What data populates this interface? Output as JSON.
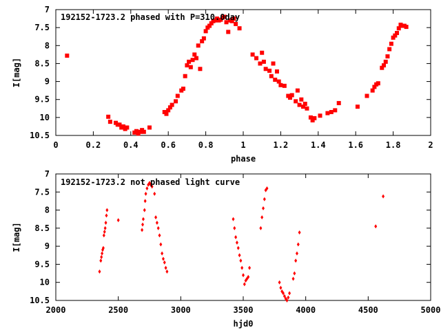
{
  "chart_data": [
    {
      "type": "scatter",
      "title": "192152-1723.2 phased with P=310.0day",
      "xlabel": "phase",
      "ylabel": "I[mag]",
      "xlim": [
        0,
        2
      ],
      "ylim": [
        7,
        10.5
      ],
      "y_inverted": true,
      "grid": false,
      "legend": "none",
      "marker": "square",
      "color": "#ff0000",
      "x_ticks": [
        "0",
        "0.2",
        "0.4",
        "0.6",
        "0.8",
        "1",
        "1.2",
        "1.4",
        "1.6",
        "1.8",
        "2"
      ],
      "y_ticks": [
        "7",
        "7.5",
        "8",
        "8.5",
        "9",
        "9.5",
        "10",
        "10.5"
      ],
      "points": [
        [
          0.06,
          8.28
        ],
        [
          0.28,
          9.98
        ],
        [
          0.29,
          10.12
        ],
        [
          0.32,
          10.15
        ],
        [
          0.33,
          10.2
        ],
        [
          0.34,
          10.2
        ],
        [
          0.35,
          10.28
        ],
        [
          0.36,
          10.25
        ],
        [
          0.37,
          10.32
        ],
        [
          0.38,
          10.28
        ],
        [
          0.42,
          10.42
        ],
        [
          0.43,
          10.38
        ],
        [
          0.44,
          10.45
        ],
        [
          0.45,
          10.4
        ],
        [
          0.46,
          10.35
        ],
        [
          0.47,
          10.4
        ],
        [
          0.5,
          10.28
        ],
        [
          0.58,
          9.85
        ],
        [
          0.59,
          9.9
        ],
        [
          0.6,
          9.8
        ],
        [
          0.61,
          9.72
        ],
        [
          0.62,
          9.65
        ],
        [
          0.64,
          9.55
        ],
        [
          0.65,
          9.4
        ],
        [
          0.67,
          9.25
        ],
        [
          0.68,
          9.2
        ],
        [
          0.69,
          8.85
        ],
        [
          0.7,
          8.55
        ],
        [
          0.71,
          8.45
        ],
        [
          0.72,
          8.6
        ],
        [
          0.73,
          8.4
        ],
        [
          0.74,
          8.25
        ],
        [
          0.75,
          8.35
        ],
        [
          0.76,
          8.0
        ],
        [
          0.77,
          8.65
        ],
        [
          0.78,
          7.88
        ],
        [
          0.79,
          7.8
        ],
        [
          0.8,
          7.6
        ],
        [
          0.81,
          7.5
        ],
        [
          0.82,
          7.45
        ],
        [
          0.83,
          7.38
        ],
        [
          0.84,
          7.32
        ],
        [
          0.85,
          7.3
        ],
        [
          0.86,
          7.25
        ],
        [
          0.87,
          7.3
        ],
        [
          0.88,
          7.28
        ],
        [
          0.89,
          7.22
        ],
        [
          0.9,
          7.2
        ],
        [
          0.91,
          7.35
        ],
        [
          0.92,
          7.62
        ],
        [
          0.93,
          7.3
        ],
        [
          0.94,
          7.32
        ],
        [
          0.95,
          7.25
        ],
        [
          0.96,
          7.4
        ],
        [
          0.98,
          7.52
        ],
        [
          1.05,
          8.25
        ],
        [
          1.07,
          8.35
        ],
        [
          1.09,
          8.5
        ],
        [
          1.1,
          8.2
        ],
        [
          1.11,
          8.45
        ],
        [
          1.12,
          8.65
        ],
        [
          1.14,
          8.7
        ],
        [
          1.15,
          8.85
        ],
        [
          1.16,
          8.5
        ],
        [
          1.17,
          8.95
        ],
        [
          1.18,
          8.72
        ],
        [
          1.19,
          9.0
        ],
        [
          1.2,
          9.1
        ],
        [
          1.22,
          9.12
        ],
        [
          1.24,
          9.4
        ],
        [
          1.25,
          9.45
        ],
        [
          1.26,
          9.38
        ],
        [
          1.28,
          9.55
        ],
        [
          1.29,
          9.25
        ],
        [
          1.3,
          9.65
        ],
        [
          1.31,
          9.5
        ],
        [
          1.32,
          9.7
        ],
        [
          1.33,
          9.62
        ],
        [
          1.34,
          9.75
        ],
        [
          1.36,
          10.0
        ],
        [
          1.37,
          10.08
        ],
        [
          1.38,
          10.02
        ],
        [
          1.41,
          9.95
        ],
        [
          1.45,
          9.88
        ],
        [
          1.47,
          9.85
        ],
        [
          1.49,
          9.8
        ],
        [
          1.51,
          9.6
        ],
        [
          1.61,
          9.7
        ],
        [
          1.66,
          9.4
        ],
        [
          1.69,
          9.25
        ],
        [
          1.7,
          9.15
        ],
        [
          1.71,
          9.08
        ],
        [
          1.72,
          9.05
        ],
        [
          1.74,
          8.62
        ],
        [
          1.75,
          8.55
        ],
        [
          1.76,
          8.45
        ],
        [
          1.77,
          8.3
        ],
        [
          1.78,
          8.1
        ],
        [
          1.79,
          7.95
        ],
        [
          1.8,
          7.78
        ],
        [
          1.81,
          7.72
        ],
        [
          1.82,
          7.65
        ],
        [
          1.83,
          7.52
        ],
        [
          1.84,
          7.42
        ],
        [
          1.85,
          7.45
        ],
        [
          1.86,
          7.45
        ],
        [
          1.87,
          7.48
        ]
      ]
    },
    {
      "type": "scatter",
      "title": "192152-1723.2 not phased light curve",
      "xlabel": "hjd0",
      "ylabel": "I[mag]",
      "xlim": [
        2000,
        5000
      ],
      "ylim": [
        7,
        10.5
      ],
      "y_inverted": true,
      "grid": false,
      "legend": "none",
      "marker": "diamond",
      "color": "#ff0000",
      "x_ticks": [
        "2000",
        "2500",
        "3000",
        "3500",
        "4000",
        "4500",
        "5000"
      ],
      "y_ticks": [
        "7",
        "7.5",
        "8",
        "8.5",
        "9",
        "9.5",
        "10",
        "10.5"
      ],
      "points": [
        [
          2350,
          9.7
        ],
        [
          2360,
          9.4
        ],
        [
          2365,
          9.3
        ],
        [
          2370,
          9.2
        ],
        [
          2375,
          9.1
        ],
        [
          2380,
          9.05
        ],
        [
          2385,
          8.7
        ],
        [
          2390,
          8.6
        ],
        [
          2395,
          8.5
        ],
        [
          2400,
          8.35
        ],
        [
          2405,
          8.15
        ],
        [
          2410,
          8.0
        ],
        [
          2500,
          8.28
        ],
        [
          2690,
          8.55
        ],
        [
          2695,
          8.4
        ],
        [
          2700,
          8.25
        ],
        [
          2710,
          8.0
        ],
        [
          2715,
          7.75
        ],
        [
          2720,
          7.55
        ],
        [
          2730,
          7.4
        ],
        [
          2740,
          7.3
        ],
        [
          2750,
          7.25
        ],
        [
          2760,
          7.3
        ],
        [
          2770,
          7.35
        ],
        [
          2790,
          7.55
        ],
        [
          2800,
          8.2
        ],
        [
          2810,
          8.35
        ],
        [
          2820,
          8.5
        ],
        [
          2830,
          8.7
        ],
        [
          2840,
          8.95
        ],
        [
          2850,
          9.2
        ],
        [
          2860,
          9.35
        ],
        [
          2870,
          9.45
        ],
        [
          2880,
          9.6
        ],
        [
          2890,
          9.7
        ],
        [
          3420,
          8.25
        ],
        [
          3430,
          8.5
        ],
        [
          3440,
          8.75
        ],
        [
          3450,
          8.9
        ],
        [
          3460,
          9.05
        ],
        [
          3470,
          9.25
        ],
        [
          3480,
          9.4
        ],
        [
          3490,
          9.6
        ],
        [
          3500,
          9.8
        ],
        [
          3510,
          10.05
        ],
        [
          3520,
          9.95
        ],
        [
          3530,
          9.9
        ],
        [
          3540,
          9.85
        ],
        [
          3550,
          9.6
        ],
        [
          3640,
          8.5
        ],
        [
          3650,
          8.2
        ],
        [
          3660,
          7.95
        ],
        [
          3670,
          7.7
        ],
        [
          3680,
          7.45
        ],
        [
          3690,
          7.4
        ],
        [
          3790,
          10.0
        ],
        [
          3800,
          10.15
        ],
        [
          3810,
          10.25
        ],
        [
          3820,
          10.3
        ],
        [
          3830,
          10.38
        ],
        [
          3840,
          10.45
        ],
        [
          3850,
          10.5
        ],
        [
          3860,
          10.42
        ],
        [
          3870,
          10.3
        ],
        [
          3900,
          9.9
        ],
        [
          3910,
          9.75
        ],
        [
          3920,
          9.4
        ],
        [
          3930,
          9.2
        ],
        [
          3940,
          8.95
        ],
        [
          3950,
          8.62
        ],
        [
          4560,
          8.45
        ],
        [
          4620,
          7.62
        ]
      ]
    }
  ]
}
